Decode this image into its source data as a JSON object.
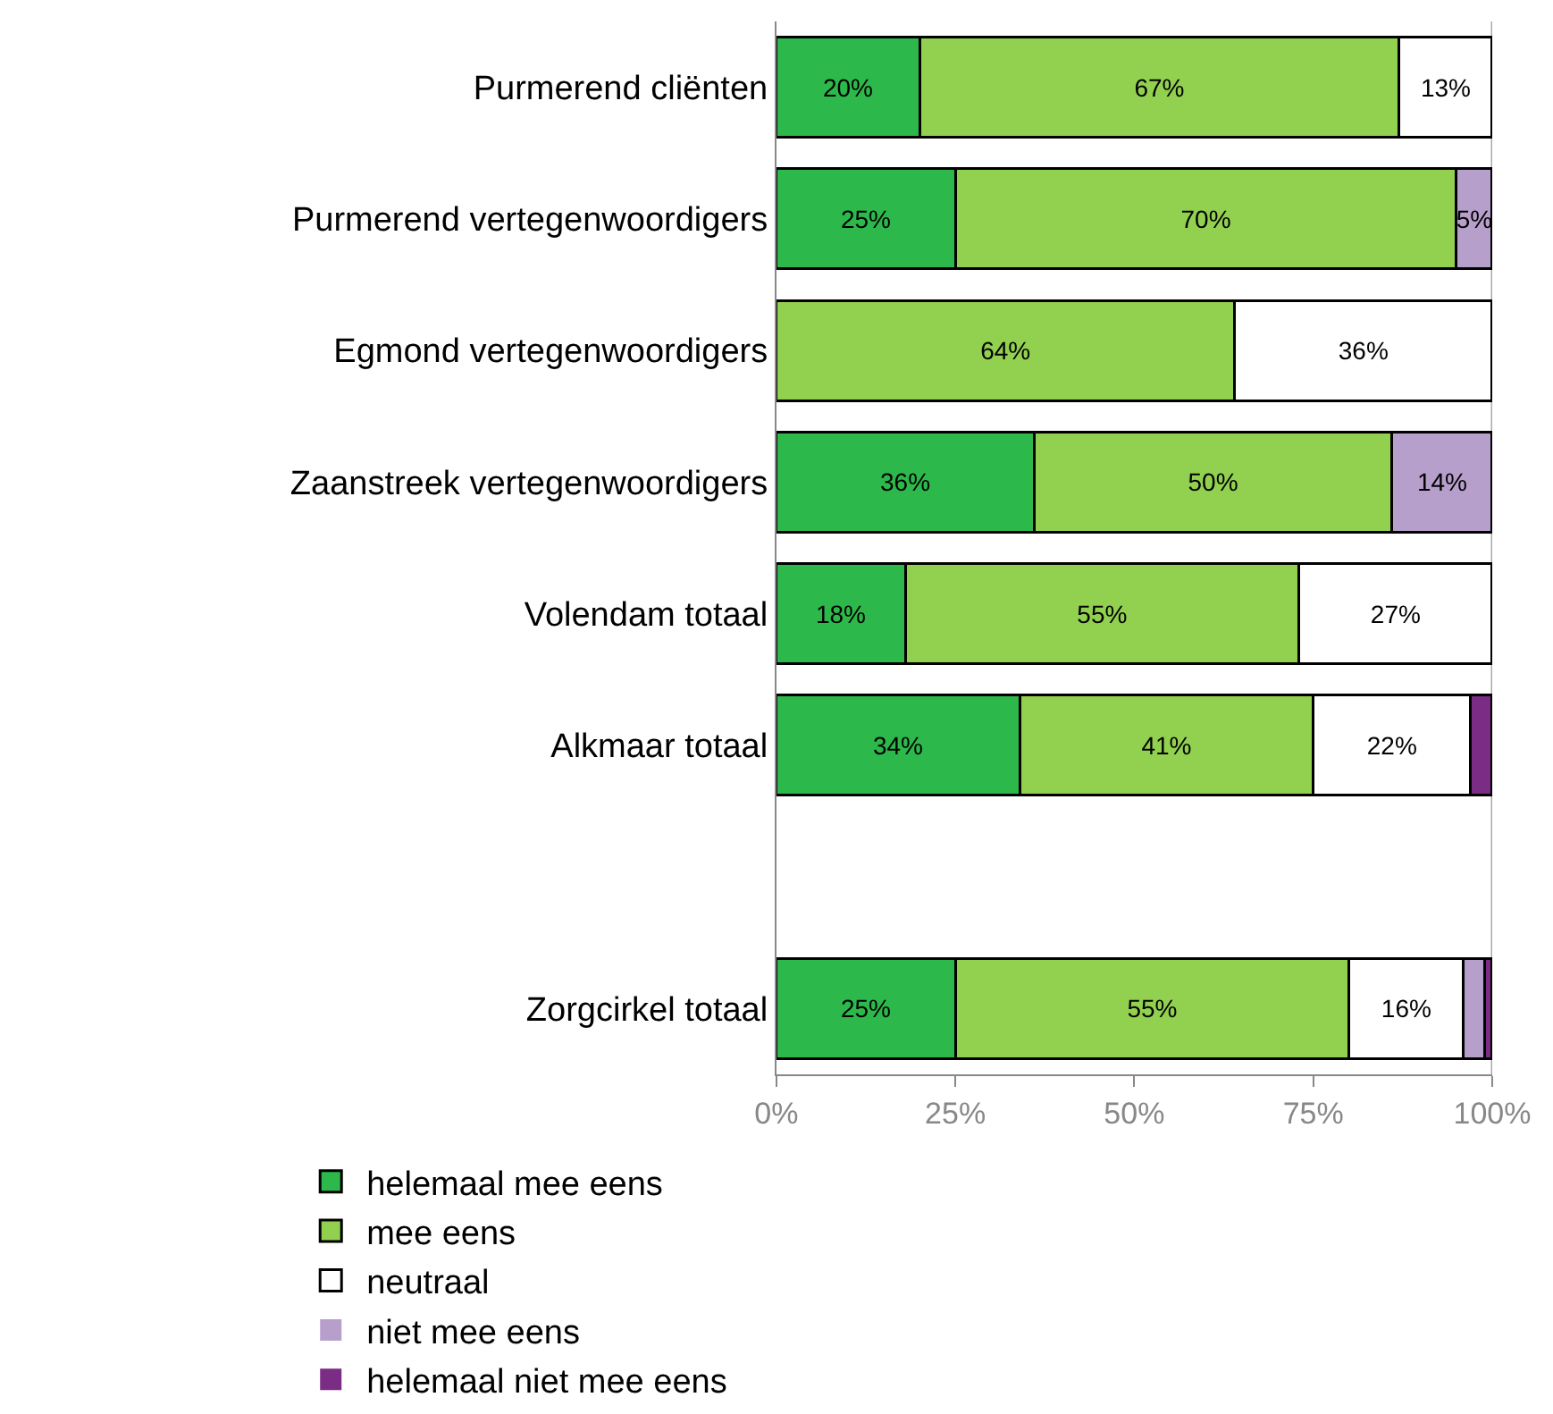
{
  "chart_data": {
    "type": "bar",
    "orientation": "horizontal",
    "stacked": true,
    "categories": [
      "Purmerend cliënten",
      "Purmerend vertegenwoordigers",
      "Egmond vertegenwoordigers",
      "Zaanstreek vertegenwoordigers",
      "Volendam totaal",
      "Alkmaar totaal",
      null,
      "Zorgcirkel totaal"
    ],
    "series": [
      {
        "name": "helemaal mee eens",
        "color": "#2db84b",
        "values": [
          20,
          25,
          0,
          36,
          18,
          34,
          null,
          25
        ],
        "value_labels": [
          "20%",
          "25%",
          null,
          "36%",
          "18%",
          "34%",
          null,
          "25%"
        ]
      },
      {
        "name": "mee eens",
        "color": "#92d050",
        "values": [
          67,
          70,
          64,
          50,
          55,
          41,
          null,
          55
        ],
        "value_labels": [
          "67%",
          "70%",
          "64%",
          "50%",
          "55%",
          "41%",
          null,
          "55%"
        ]
      },
      {
        "name": "neutraal",
        "color": "#ffffff",
        "values": [
          13,
          0,
          36,
          0,
          27,
          22,
          null,
          16
        ],
        "value_labels": [
          "13%",
          null,
          "36%",
          null,
          "27%",
          "22%",
          null,
          "16%"
        ]
      },
      {
        "name": "niet mee eens",
        "color": "#b79fcb",
        "values": [
          0,
          5,
          0,
          14,
          0,
          0,
          null,
          3
        ],
        "value_labels": [
          null,
          "5%",
          null,
          "14%",
          null,
          null,
          null,
          null
        ]
      },
      {
        "name": "helemaal niet mee eens",
        "color": "#7b2c84",
        "values": [
          0,
          0,
          0,
          0,
          0,
          3,
          null,
          1
        ],
        "value_labels": [
          null,
          null,
          null,
          null,
          null,
          null,
          null,
          null
        ]
      }
    ],
    "xlim": [
      0,
      100
    ],
    "xticks": [
      {
        "value": 0,
        "label": "0%"
      },
      {
        "value": 25,
        "label": "25%"
      },
      {
        "value": 50,
        "label": "50%"
      },
      {
        "value": 75,
        "label": "75%"
      },
      {
        "value": 100,
        "label": "100%"
      }
    ],
    "legend": "bottom"
  }
}
